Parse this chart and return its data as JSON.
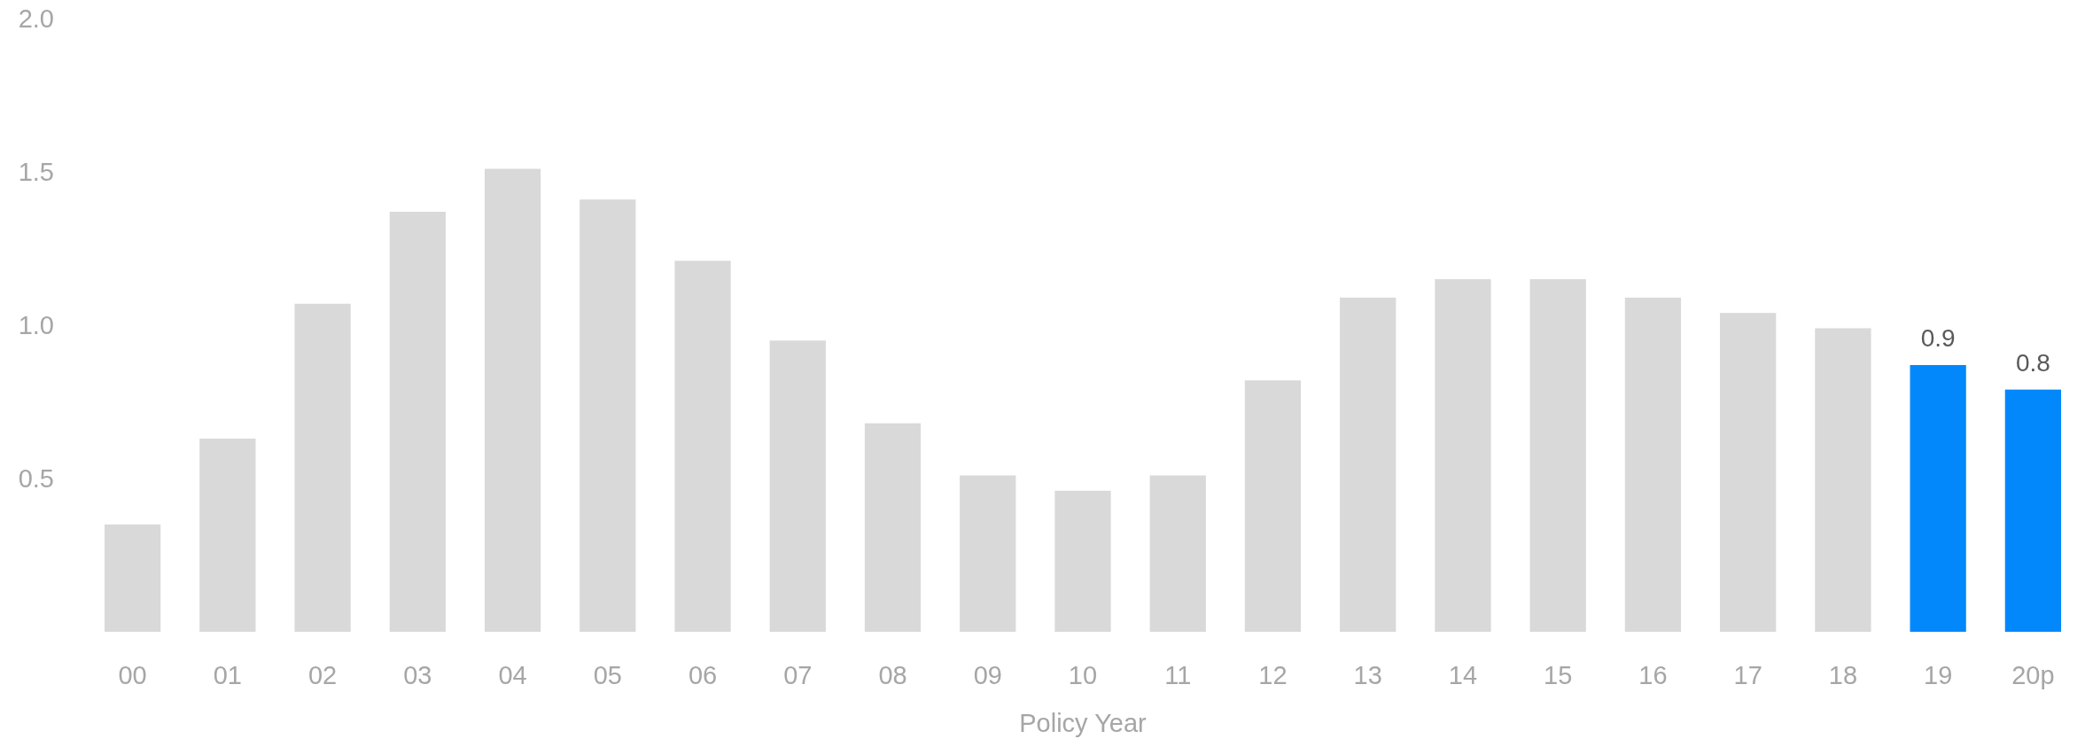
{
  "chart_data": {
    "type": "bar",
    "xlabel": "Policy Year",
    "categories": [
      "00",
      "01",
      "02",
      "03",
      "04",
      "05",
      "06",
      "07",
      "08",
      "09",
      "10",
      "11",
      "12",
      "13",
      "14",
      "15",
      "16",
      "17",
      "18",
      "19",
      "20p"
    ],
    "values": [
      0.35,
      0.63,
      1.07,
      1.37,
      1.51,
      1.41,
      1.21,
      0.95,
      0.68,
      0.51,
      0.46,
      0.51,
      0.82,
      1.09,
      1.15,
      1.15,
      1.09,
      1.04,
      0.99,
      0.87,
      0.79
    ],
    "colors": [
      "#d9d9d9",
      "#d9d9d9",
      "#d9d9d9",
      "#d9d9d9",
      "#d9d9d9",
      "#d9d9d9",
      "#d9d9d9",
      "#d9d9d9",
      "#d9d9d9",
      "#d9d9d9",
      "#d9d9d9",
      "#d9d9d9",
      "#d9d9d9",
      "#d9d9d9",
      "#d9d9d9",
      "#d9d9d9",
      "#d9d9d9",
      "#d9d9d9",
      "#d9d9d9",
      "#0388fc",
      "#0388fc"
    ],
    "value_labels": [
      null,
      null,
      null,
      null,
      null,
      null,
      null,
      null,
      null,
      null,
      null,
      null,
      null,
      null,
      null,
      null,
      null,
      null,
      null,
      "0.9",
      "0.8"
    ],
    "ylim": [
      0,
      2.0
    ],
    "yticks": [
      0.5,
      {
        "value": 1,
        "label": "1.0"
      },
      1.5,
      {
        "value": 2,
        "label": "2.0"
      }
    ]
  }
}
